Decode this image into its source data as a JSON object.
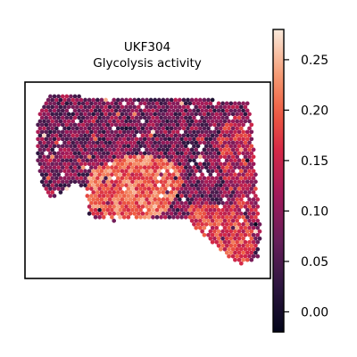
{
  "chart_data": {
    "type": "heatmap",
    "subtype": "spatial-spot-map",
    "title": "UKF304",
    "subtitle": "Glycolysis activity",
    "colormap": "rocket",
    "colorbar": {
      "range": [
        -0.02,
        0.28
      ],
      "ticks": [
        0.0,
        0.05,
        0.1,
        0.15,
        0.2,
        0.25
      ],
      "tick_labels": [
        "0.00",
        "0.05",
        "0.10",
        "0.15",
        "0.20",
        "0.25"
      ]
    },
    "regions": [
      {
        "name": "upper tissue band",
        "value_range": [
          0.02,
          0.14
        ]
      },
      {
        "name": "central-lower lobe",
        "value_range": [
          0.15,
          0.25
        ]
      },
      {
        "name": "lower-right lobe",
        "value_range": [
          0.12,
          0.22
        ]
      },
      {
        "name": "right edge",
        "value_range": [
          0.08,
          0.2
        ]
      }
    ],
    "grid": false,
    "axes_visible": false
  }
}
